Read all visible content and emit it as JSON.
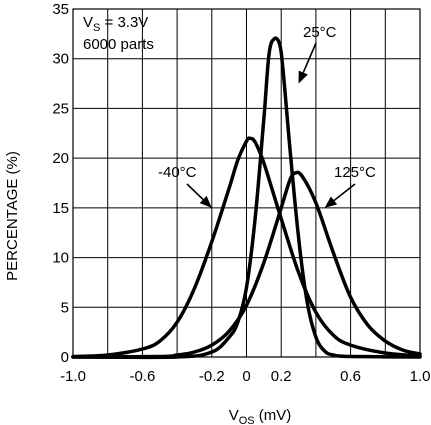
{
  "chart_data": {
    "type": "line",
    "xlabel_main": "V",
    "xlabel_sub": "OS",
    "xlabel_unit": " (mV)",
    "ylabel": "PERCENTAGE (%)",
    "xlim": [
      -1.0,
      1.0
    ],
    "ylim": [
      0,
      35
    ],
    "x_tick_values": [
      -1.0,
      -0.6,
      -0.2,
      0,
      0.2,
      0.6,
      1.0
    ],
    "x_tick_labels": [
      "-1.0",
      "-0.6",
      "-0.2",
      "0",
      "0.2",
      "0.6",
      "1.0"
    ],
    "x_grid": [
      -1.0,
      -0.8,
      -0.6,
      -0.4,
      -0.2,
      0.0,
      0.2,
      0.4,
      0.6,
      0.8,
      1.0
    ],
    "y_tick_values": [
      0,
      5,
      10,
      15,
      20,
      25,
      30,
      35
    ],
    "y_tick_labels": [
      "0",
      "5",
      "10",
      "15",
      "20",
      "25",
      "30",
      "35"
    ],
    "grid": true,
    "note_main": "V",
    "note_sub": "S",
    "note_rest": " = 3.3V",
    "note_line2": "6000 parts",
    "series": [
      {
        "name": "-40°C",
        "points": [
          [
            -1.0,
            0.05
          ],
          [
            -0.8,
            0.2
          ],
          [
            -0.6,
            0.8
          ],
          [
            -0.5,
            1.6
          ],
          [
            -0.4,
            3.5
          ],
          [
            -0.3,
            6.9
          ],
          [
            -0.2,
            11.6
          ],
          [
            -0.1,
            17.0
          ],
          [
            -0.05,
            19.8
          ],
          [
            0.0,
            21.7
          ],
          [
            0.02,
            22.0
          ],
          [
            0.05,
            21.6
          ],
          [
            0.1,
            19.5
          ],
          [
            0.2,
            13.9
          ],
          [
            0.3,
            8.5
          ],
          [
            0.4,
            4.5
          ],
          [
            0.5,
            2.2
          ],
          [
            0.6,
            1.2
          ],
          [
            0.8,
            0.4
          ],
          [
            1.0,
            0.1
          ]
        ]
      },
      {
        "name": "25°C",
        "points": [
          [
            -1.0,
            0.0
          ],
          [
            -0.4,
            0.0
          ],
          [
            -0.2,
            0.5
          ],
          [
            -0.1,
            2.0
          ],
          [
            -0.05,
            3.5
          ],
          [
            0.0,
            7.0
          ],
          [
            0.05,
            14.0
          ],
          [
            0.1,
            24.0
          ],
          [
            0.13,
            30.5
          ],
          [
            0.16,
            32.0
          ],
          [
            0.19,
            31.5
          ],
          [
            0.21,
            29.0
          ],
          [
            0.25,
            21.0
          ],
          [
            0.3,
            12.0
          ],
          [
            0.35,
            5.5
          ],
          [
            0.4,
            2.0
          ],
          [
            0.45,
            0.6
          ],
          [
            0.5,
            0.2
          ],
          [
            0.6,
            0.05
          ],
          [
            1.0,
            0.0
          ]
        ]
      },
      {
        "name": "125°C",
        "points": [
          [
            -1.0,
            0.0
          ],
          [
            -0.5,
            0.05
          ],
          [
            -0.4,
            0.2
          ],
          [
            -0.3,
            0.5
          ],
          [
            -0.2,
            1.2
          ],
          [
            -0.1,
            2.6
          ],
          [
            0.0,
            5.2
          ],
          [
            0.1,
            9.5
          ],
          [
            0.2,
            15.0
          ],
          [
            0.25,
            17.8
          ],
          [
            0.28,
            18.5
          ],
          [
            0.32,
            18.2
          ],
          [
            0.4,
            15.5
          ],
          [
            0.5,
            10.5
          ],
          [
            0.6,
            6.0
          ],
          [
            0.7,
            3.2
          ],
          [
            0.8,
            1.6
          ],
          [
            0.9,
            0.7
          ],
          [
            1.0,
            0.3
          ]
        ]
      }
    ],
    "annotations": [
      {
        "label": "25°C",
        "target": [
          0.3,
          27.5
        ]
      },
      {
        "label": "-40°C",
        "target": [
          -0.2,
          15.0
        ]
      },
      {
        "label": "125°C",
        "target": [
          0.45,
          15.0
        ]
      }
    ]
  }
}
